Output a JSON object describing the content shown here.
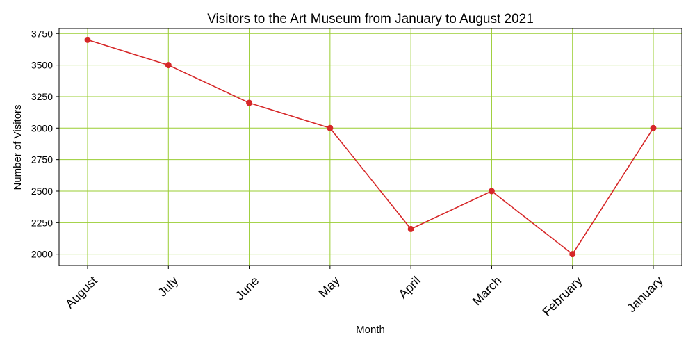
{
  "chart_data": {
    "type": "line",
    "title": "Visitors to the Art Museum from January to August 2021",
    "xlabel": "Month",
    "ylabel": "Number of Visitors",
    "categories": [
      "August",
      "July",
      "June",
      "May",
      "April",
      "March",
      "February",
      "January"
    ],
    "series": [
      {
        "values": [
          3700,
          3500,
          3200,
          3000,
          2200,
          2500,
          2000,
          3000
        ],
        "color": "#d62728"
      }
    ],
    "ylim": [
      1910,
      3790
    ],
    "yticks": [
      2000,
      2250,
      2500,
      2750,
      3000,
      3250,
      3500,
      3750
    ],
    "grid": true,
    "grid_color": "#9acd32",
    "x_tick_rotation_deg": 45,
    "marker": "circle"
  }
}
